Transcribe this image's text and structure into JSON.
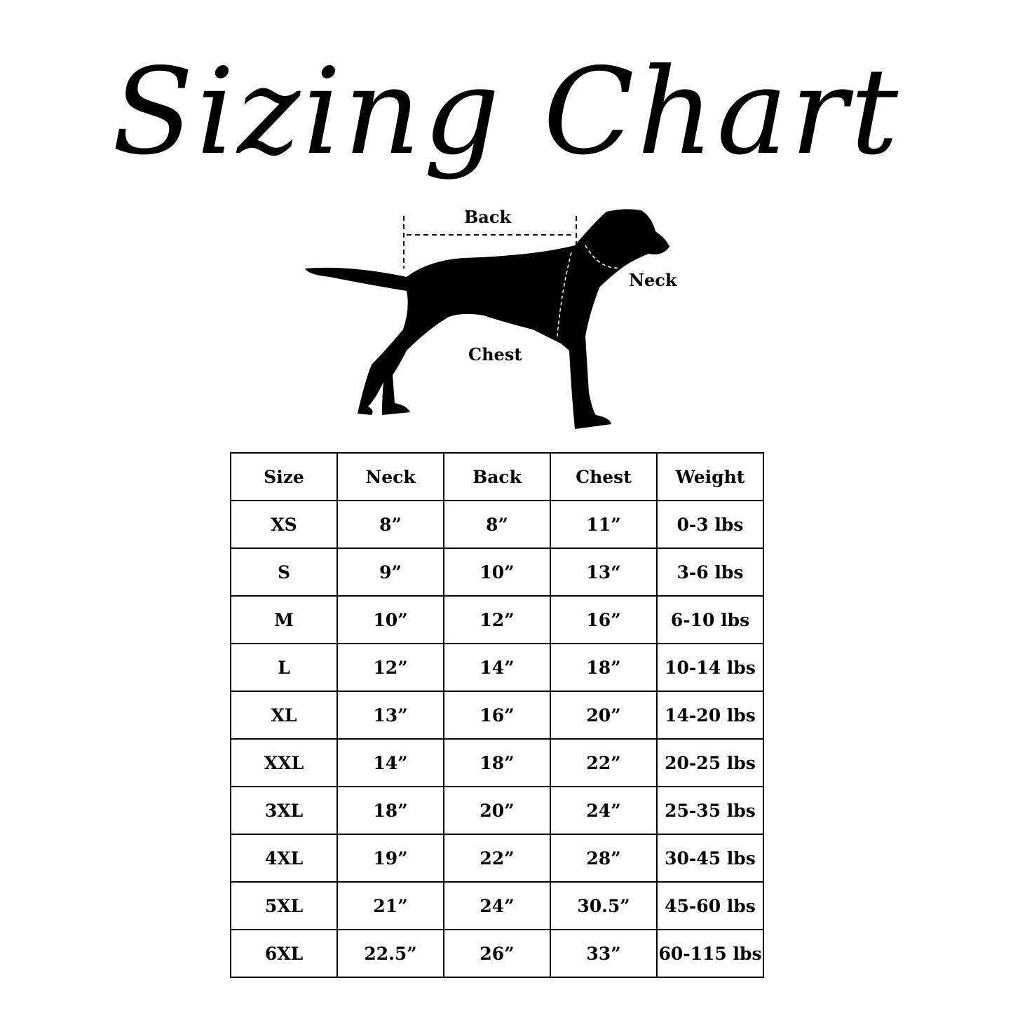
{
  "title": "Sizing Chart",
  "diagram": {
    "back_label": "Back",
    "neck_label": "Neck",
    "chest_label": "Chest",
    "icon": "dog-silhouette-icon"
  },
  "table": {
    "headers": [
      "Size",
      "Neck",
      "Back",
      "Chest",
      "Weight"
    ],
    "rows": [
      [
        "XS",
        "8”",
        "8”",
        "11”",
        "0-3 lbs"
      ],
      [
        "S",
        "9”",
        "10”",
        "13“",
        "3-6 lbs"
      ],
      [
        "M",
        "10”",
        "12”",
        "16”",
        "6-10 lbs"
      ],
      [
        "L",
        "12”",
        "14”",
        "18”",
        "10-14 lbs"
      ],
      [
        "XL",
        "13”",
        "16”",
        "20”",
        "14-20 lbs"
      ],
      [
        "XXL",
        "14”",
        "18”",
        "22”",
        "20-25 lbs"
      ],
      [
        "3XL",
        "18”",
        "20”",
        "24”",
        "25-35 lbs"
      ],
      [
        "4XL",
        "19”",
        "22”",
        "28”",
        "30-45 lbs"
      ],
      [
        "5XL",
        "21”",
        "24”",
        "30.5”",
        "45-60 lbs"
      ],
      [
        "6XL",
        "22.5”",
        "26”",
        "33”",
        "60-115 lbs"
      ]
    ]
  }
}
